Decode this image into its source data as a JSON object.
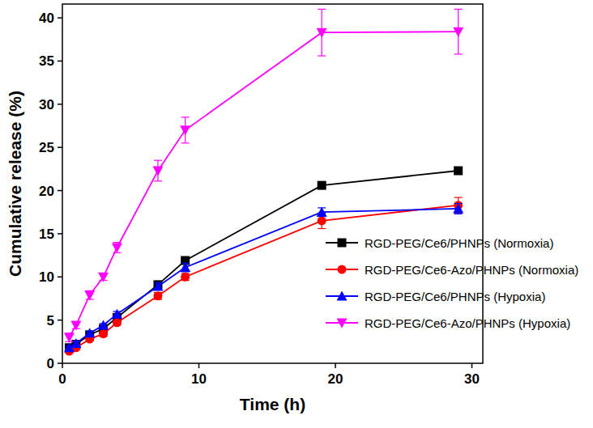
{
  "chart_data": {
    "type": "line",
    "x_label": "Time (h)",
    "y_label": "Cumulative release (%)",
    "x": [
      0.5,
      1,
      2,
      3,
      4,
      7,
      9,
      19,
      29
    ],
    "xlim": [
      0,
      30.8
    ],
    "xticks": [
      0,
      10,
      20,
      30
    ],
    "ylim": [
      0,
      41.6
    ],
    "yticks": [
      0,
      5,
      10,
      15,
      20,
      25,
      30,
      35,
      40
    ],
    "grid": false,
    "legend": "lower right",
    "series": [
      {
        "name": "RGD-PEG/Ce6/PHNPs (Normoxia)",
        "color": "#000000",
        "marker": "square",
        "line_style": "solid",
        "values": [
          1.8,
          2.2,
          3.3,
          4.0,
          5.3,
          9.1,
          11.9,
          20.6,
          22.3
        ],
        "errors": [
          0.2,
          0.2,
          0.2,
          0.2,
          0.3,
          0.3,
          0.3,
          0.3,
          0.4
        ]
      },
      {
        "name": "RGD-PEG/Ce6-Azo/PHNPs (Normoxia)",
        "color": "#ff0000",
        "marker": "circle",
        "line_style": "solid",
        "values": [
          1.4,
          1.8,
          2.8,
          3.4,
          4.7,
          7.8,
          10.0,
          16.5,
          18.3
        ],
        "errors": [
          0.2,
          0.2,
          0.2,
          0.3,
          0.3,
          0.4,
          0.4,
          0.9,
          0.9
        ]
      },
      {
        "name": "RGD-PEG/Ce6/PHNPs (Hypoxia)",
        "color": "#0000ff",
        "marker": "triangle",
        "line_style": "solid",
        "values": [
          1.8,
          2.3,
          3.5,
          4.4,
          5.7,
          8.9,
          11.1,
          17.5,
          17.9
        ],
        "errors": [
          0.2,
          0.2,
          0.2,
          0.2,
          0.3,
          0.4,
          0.5,
          0.5,
          0.6
        ]
      },
      {
        "name": "RGD-PEG/Ce6-Azo/PHNPs (Hypoxia)",
        "color": "#ff00ff",
        "marker": "triangle-down",
        "line_style": "solid",
        "values": [
          3.0,
          4.4,
          7.9,
          10.0,
          13.4,
          22.3,
          27.0,
          38.3,
          38.4
        ],
        "errors": [
          0.5,
          0.4,
          0.5,
          0.4,
          0.6,
          1.2,
          1.5,
          2.7,
          2.6
        ]
      }
    ]
  }
}
